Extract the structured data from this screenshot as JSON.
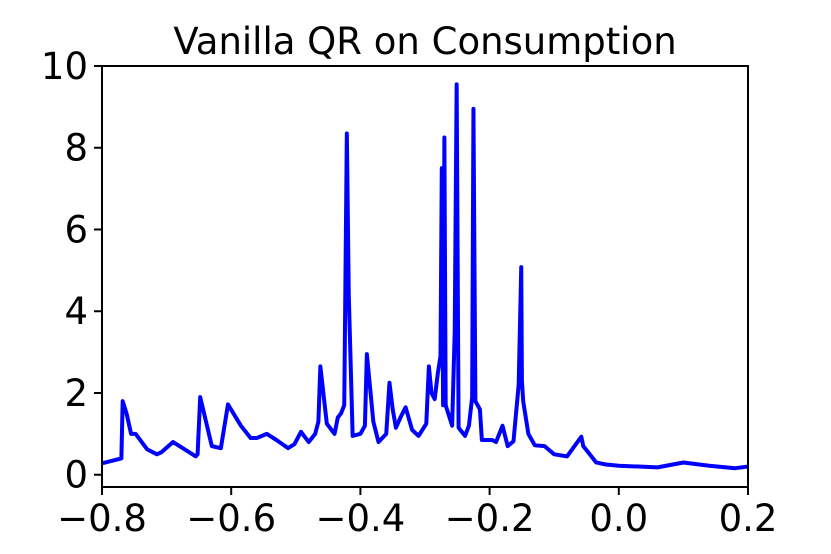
{
  "chart_data": {
    "type": "line",
    "title": "Vanilla QR on Consumption",
    "xlabel": "",
    "ylabel": "",
    "xlim": [
      -0.8,
      0.2
    ],
    "ylim": [
      -0.3,
      10.0
    ],
    "grid": false,
    "legend": "none",
    "xticks": [
      -0.8,
      -0.6,
      -0.4,
      -0.2,
      0.0,
      0.2
    ],
    "xtick_labels": [
      "−0.8",
      "−0.6",
      "−0.4",
      "−0.2",
      "0.0",
      "0.2"
    ],
    "yticks": [
      0,
      2,
      4,
      6,
      8,
      10
    ],
    "ytick_labels": [
      "0",
      "2",
      "4",
      "6",
      "8",
      "10"
    ],
    "series": [
      {
        "color": "#0000ff",
        "x": [
          -0.8,
          -0.77,
          -0.768,
          -0.762,
          -0.755,
          -0.748,
          -0.73,
          -0.715,
          -0.708,
          -0.69,
          -0.655,
          -0.652,
          -0.648,
          -0.63,
          -0.616,
          -0.605,
          -0.585,
          -0.57,
          -0.56,
          -0.545,
          -0.53,
          -0.512,
          -0.502,
          -0.492,
          -0.48,
          -0.47,
          -0.465,
          -0.462,
          -0.452,
          -0.44,
          -0.435,
          -0.43,
          -0.425,
          -0.421,
          -0.418,
          -0.412,
          -0.4,
          -0.393,
          -0.39,
          -0.38,
          -0.372,
          -0.36,
          -0.355,
          -0.35,
          -0.345,
          -0.338,
          -0.33,
          -0.32,
          -0.31,
          -0.298,
          -0.294,
          -0.29,
          -0.285,
          -0.28,
          -0.276,
          -0.274,
          -0.272,
          -0.27,
          -0.268,
          -0.266,
          -0.258,
          -0.254,
          -0.251,
          -0.248,
          -0.238,
          -0.232,
          -0.227,
          -0.225,
          -0.222,
          -0.215,
          -0.212,
          -0.196,
          -0.19,
          -0.18,
          -0.172,
          -0.163,
          -0.155,
          -0.151,
          -0.15,
          -0.148,
          -0.14,
          -0.13,
          -0.115,
          -0.1,
          -0.08,
          -0.058,
          -0.055,
          -0.045,
          -0.035,
          -0.02,
          0.0,
          0.03,
          0.06,
          0.1,
          0.14,
          0.18,
          0.2
        ],
        "y": [
          0.28,
          0.4,
          1.8,
          1.5,
          1.0,
          1.0,
          0.62,
          0.5,
          0.55,
          0.8,
          0.45,
          0.5,
          1.9,
          0.7,
          0.65,
          1.72,
          1.2,
          0.9,
          0.9,
          1.0,
          0.85,
          0.65,
          0.75,
          1.05,
          0.8,
          1.0,
          1.3,
          2.65,
          1.25,
          1.0,
          1.4,
          1.5,
          1.7,
          8.35,
          4.4,
          0.95,
          1.0,
          1.2,
          2.95,
          1.3,
          0.8,
          1.0,
          2.25,
          1.6,
          1.15,
          1.4,
          1.65,
          1.1,
          0.95,
          1.25,
          2.65,
          2.0,
          1.85,
          2.5,
          2.9,
          7.5,
          1.7,
          8.25,
          1.7,
          1.6,
          1.2,
          3.5,
          9.55,
          1.15,
          0.95,
          1.2,
          1.9,
          8.95,
          1.8,
          1.6,
          0.85,
          0.85,
          0.8,
          1.2,
          0.7,
          0.82,
          2.2,
          5.08,
          2.3,
          1.8,
          1.0,
          0.72,
          0.7,
          0.5,
          0.45,
          0.93,
          0.7,
          0.5,
          0.3,
          0.25,
          0.22,
          0.2,
          0.18,
          0.3,
          0.22,
          0.16,
          0.2
        ]
      }
    ]
  }
}
